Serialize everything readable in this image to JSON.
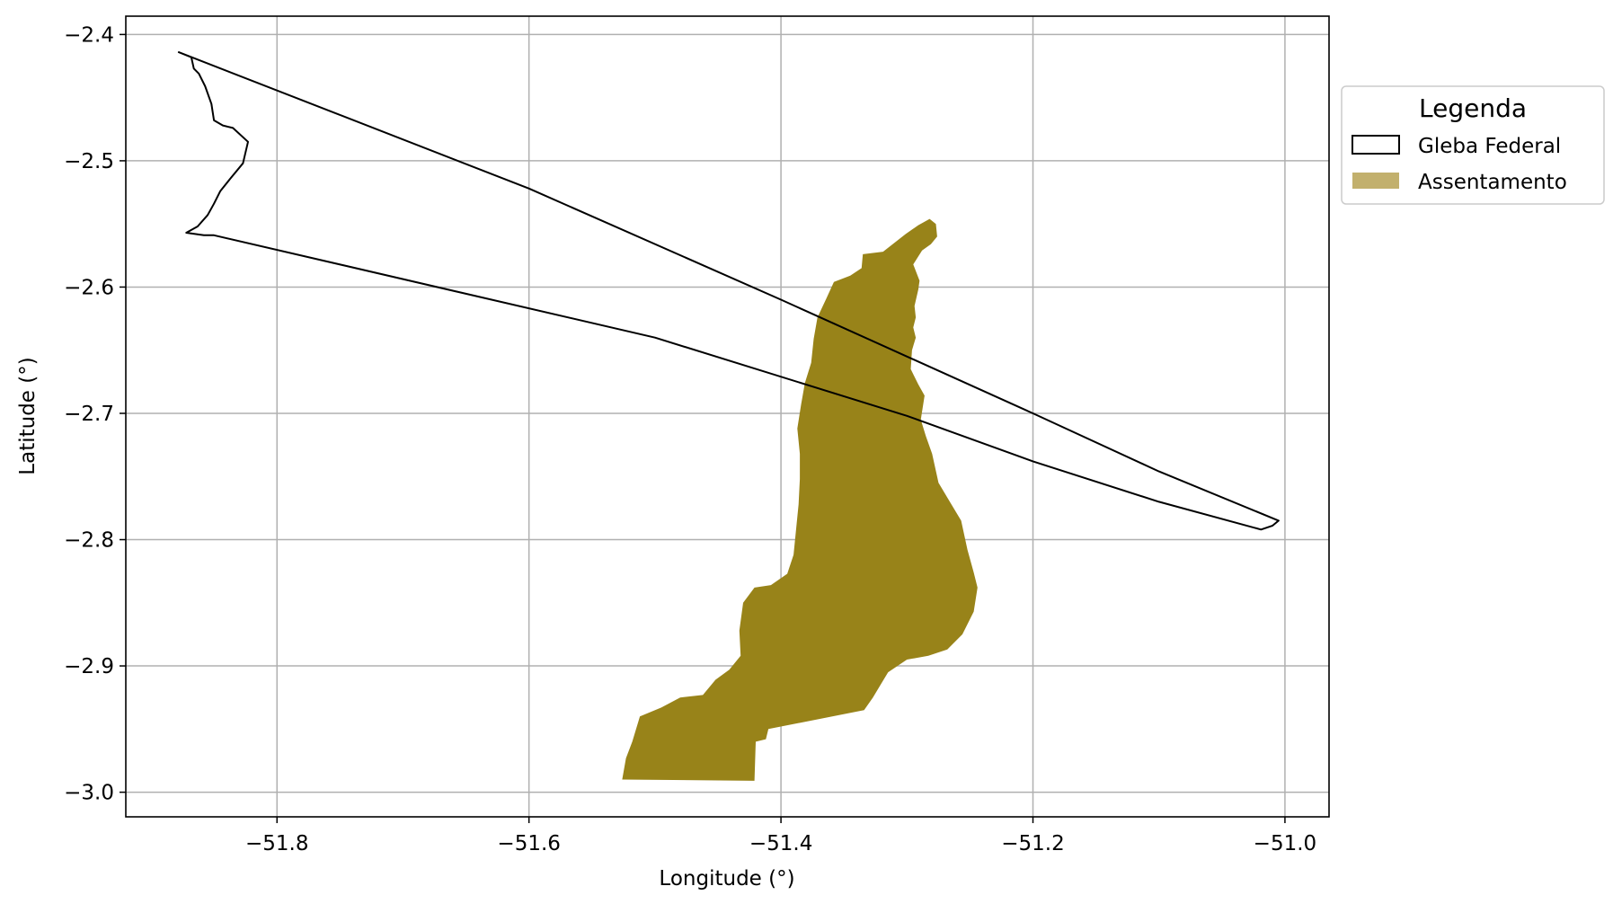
{
  "chart_data": {
    "type": "map",
    "xlabel": "Longitude (°)",
    "ylabel": "Latitude (°)",
    "xlim": [
      -51.92,
      -50.965
    ],
    "ylim": [
      -3.0195,
      -2.3855
    ],
    "xticks": [
      -51.8,
      -51.6,
      -51.4,
      -51.2,
      -51.0
    ],
    "yticks": [
      -2.4,
      -2.5,
      -2.6,
      -2.7,
      -2.8,
      -2.9,
      -3.0
    ],
    "xtick_labels": [
      "−51.8",
      "−51.6",
      "−51.4",
      "−51.2",
      "−51.0"
    ],
    "ytick_labels": [
      "−2.4",
      "−2.5",
      "−2.6",
      "−2.7",
      "−2.8",
      "−2.9",
      "−3.0"
    ],
    "grid": true,
    "legend": {
      "title": "Legenda",
      "placement": "outside-right-top",
      "entries": [
        {
          "label": "Gleba Federal",
          "style": "outline",
          "color": "#000000"
        },
        {
          "label": "Assentamento",
          "style": "fill",
          "color": "#c2b06d"
        }
      ]
    },
    "layers": [
      {
        "name": "Gleba Federal",
        "style": "outline",
        "stroke": "#000000",
        "fill": "none",
        "coords": [
          [
            -51.878,
            -2.414
          ],
          [
            -51.868,
            -2.418
          ],
          [
            -51.866,
            -2.427
          ],
          [
            -51.862,
            -2.431
          ],
          [
            -51.857,
            -2.441
          ],
          [
            -51.852,
            -2.455
          ],
          [
            -51.85,
            -2.468
          ],
          [
            -51.843,
            -2.472
          ],
          [
            -51.835,
            -2.474
          ],
          [
            -51.823,
            -2.485
          ],
          [
            -51.827,
            -2.502
          ],
          [
            -51.837,
            -2.514
          ],
          [
            -51.845,
            -2.524
          ],
          [
            -51.85,
            -2.534
          ],
          [
            -51.855,
            -2.543
          ],
          [
            -51.863,
            -2.552
          ],
          [
            -51.872,
            -2.557
          ],
          [
            -51.858,
            -2.559
          ],
          [
            -51.85,
            -2.559
          ],
          [
            -51.5,
            -2.64
          ],
          [
            -51.3,
            -2.702
          ],
          [
            -51.2,
            -2.738
          ],
          [
            -51.1,
            -2.77
          ],
          [
            -51.019,
            -2.792
          ],
          [
            -51.01,
            -2.789
          ],
          [
            -51.005,
            -2.785
          ],
          [
            -51.1,
            -2.746
          ],
          [
            -51.2,
            -2.7
          ],
          [
            -51.4,
            -2.61
          ],
          [
            -51.6,
            -2.522
          ],
          [
            -51.878,
            -2.414
          ]
        ]
      },
      {
        "name": "Assentamento",
        "style": "fill",
        "fill": "#988319",
        "coords": [
          [
            -51.282,
            -2.546
          ],
          [
            -51.277,
            -2.55
          ],
          [
            -51.276,
            -2.56
          ],
          [
            -51.281,
            -2.566
          ],
          [
            -51.288,
            -2.571
          ],
          [
            -51.295,
            -2.582
          ],
          [
            -51.29,
            -2.595
          ],
          [
            -51.291,
            -2.602
          ],
          [
            -51.294,
            -2.615
          ],
          [
            -51.293,
            -2.624
          ],
          [
            -51.295,
            -2.632
          ],
          [
            -51.293,
            -2.64
          ],
          [
            -51.296,
            -2.65
          ],
          [
            -51.297,
            -2.665
          ],
          [
            -51.291,
            -2.677
          ],
          [
            -51.286,
            -2.686
          ],
          [
            -51.289,
            -2.705
          ],
          [
            -51.285,
            -2.718
          ],
          [
            -51.28,
            -2.732
          ],
          [
            -51.275,
            -2.755
          ],
          [
            -51.266,
            -2.77
          ],
          [
            -51.257,
            -2.785
          ],
          [
            -51.252,
            -2.808
          ],
          [
            -51.247,
            -2.826
          ],
          [
            -51.244,
            -2.838
          ],
          [
            -51.247,
            -2.857
          ],
          [
            -51.256,
            -2.875
          ],
          [
            -51.268,
            -2.887
          ],
          [
            -51.283,
            -2.892
          ],
          [
            -51.3,
            -2.895
          ],
          [
            -51.315,
            -2.905
          ],
          [
            -51.327,
            -2.925
          ],
          [
            -51.334,
            -2.935
          ],
          [
            -51.41,
            -2.95
          ],
          [
            -51.412,
            -2.958
          ],
          [
            -51.42,
            -2.96
          ],
          [
            -51.421,
            -2.991
          ],
          [
            -51.526,
            -2.99
          ],
          [
            -51.523,
            -2.973
          ],
          [
            -51.518,
            -2.96
          ],
          [
            -51.512,
            -2.94
          ],
          [
            -51.495,
            -2.933
          ],
          [
            -51.48,
            -2.925
          ],
          [
            -51.462,
            -2.923
          ],
          [
            -51.452,
            -2.911
          ],
          [
            -51.441,
            -2.903
          ],
          [
            -51.432,
            -2.892
          ],
          [
            -51.433,
            -2.872
          ],
          [
            -51.43,
            -2.85
          ],
          [
            -51.421,
            -2.838
          ],
          [
            -51.408,
            -2.836
          ],
          [
            -51.395,
            -2.827
          ],
          [
            -51.39,
            -2.812
          ],
          [
            -51.388,
            -2.792
          ],
          [
            -51.386,
            -2.772
          ],
          [
            -51.385,
            -2.752
          ],
          [
            -51.385,
            -2.732
          ],
          [
            -51.387,
            -2.712
          ],
          [
            -51.384,
            -2.693
          ],
          [
            -51.381,
            -2.676
          ],
          [
            -51.376,
            -2.66
          ],
          [
            -51.374,
            -2.641
          ],
          [
            -51.371,
            -2.624
          ],
          [
            -51.364,
            -2.609
          ],
          [
            -51.358,
            -2.596
          ],
          [
            -51.345,
            -2.591
          ],
          [
            -51.336,
            -2.585
          ],
          [
            -51.335,
            -2.574
          ],
          [
            -51.319,
            -2.572
          ],
          [
            -51.31,
            -2.565
          ],
          [
            -51.301,
            -2.558
          ],
          [
            -51.291,
            -2.551
          ],
          [
            -51.282,
            -2.546
          ]
        ]
      }
    ]
  }
}
